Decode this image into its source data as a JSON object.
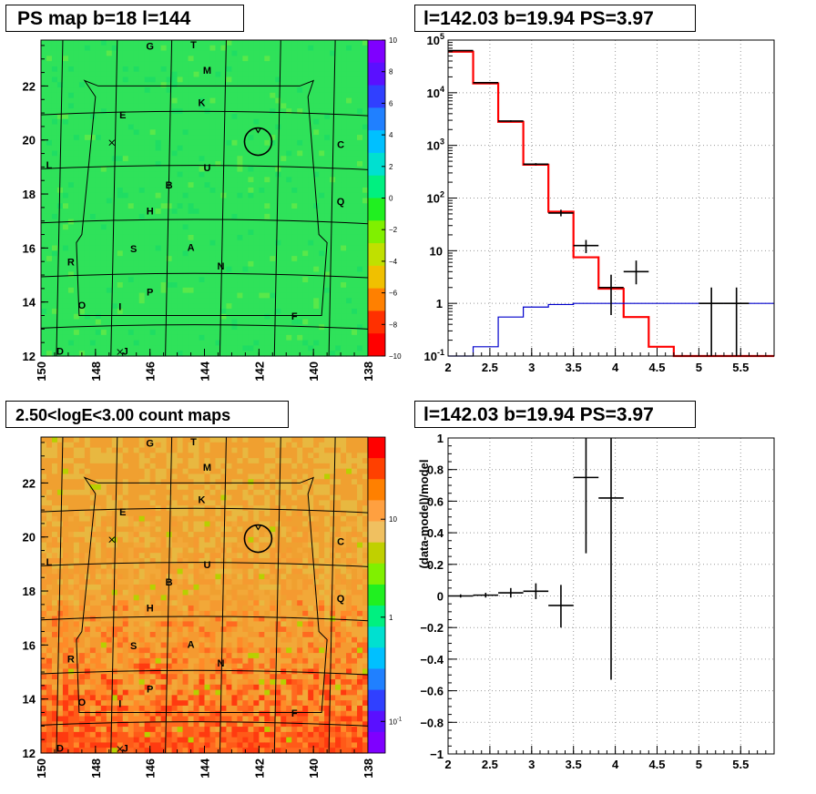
{
  "panels": {
    "tl_title": "PS map b=18 l=144",
    "tr_title": "l=142.03 b=19.94 PS=3.97",
    "bl_title": "2.50<logE<3.00 count maps",
    "br_title": "l=142.03 b=19.94 PS=3.97"
  },
  "colors": {
    "ps_map_bg": "#2be05a",
    "count_map_bg": "#f0a030",
    "data": "#000000",
    "model": "#ff0000",
    "background_model": "#0000cc"
  },
  "chart_data": [
    {
      "type": "heatmap",
      "name": "ps-map",
      "title": "PS map b=18 l=144",
      "xlim": [
        150,
        138
      ],
      "ylim": [
        12,
        23.7
      ],
      "x_ticks": [
        "150",
        "148",
        "146",
        "144",
        "142",
        "140",
        "138"
      ],
      "y_ticks": [
        "12",
        "14",
        "16",
        "18",
        "20",
        "22"
      ],
      "colorbar": {
        "scale": "linear",
        "range": [
          -10,
          10
        ],
        "ticks": [
          "10",
          "8",
          "6",
          "4",
          "2",
          "0",
          "−2",
          "−4",
          "−6",
          "−8",
          "−10"
        ],
        "colors": [
          "#7f00ff",
          "#5a10ff",
          "#3040ff",
          "#2080ff",
          "#00c0ff",
          "#00e0d0",
          "#00f080",
          "#20f020",
          "#80f000",
          "#c0e000",
          "#f0c000",
          "#ff8000",
          "#ff3000",
          "#ff0000"
        ]
      },
      "labels": [
        {
          "t": "G",
          "l": 146.0,
          "b": 23.35
        },
        {
          "t": "T",
          "l": 144.4,
          "b": 23.4
        },
        {
          "t": "M",
          "l": 143.9,
          "b": 22.45
        },
        {
          "t": "K",
          "l": 144.1,
          "b": 21.25
        },
        {
          "t": "E",
          "l": 147.0,
          "b": 20.8
        },
        {
          "t": "C",
          "l": 139.0,
          "b": 19.7
        },
        {
          "t": "L",
          "l": 149.7,
          "b": 18.95
        },
        {
          "t": "U",
          "l": 143.9,
          "b": 18.85
        },
        {
          "t": "B",
          "l": 145.3,
          "b": 18.2
        },
        {
          "t": "Q",
          "l": 139.0,
          "b": 17.6
        },
        {
          "t": "H",
          "l": 146.0,
          "b": 17.25
        },
        {
          "t": "S",
          "l": 146.6,
          "b": 15.85
        },
        {
          "t": "A",
          "l": 144.5,
          "b": 15.9
        },
        {
          "t": "R",
          "l": 148.9,
          "b": 15.35
        },
        {
          "t": "N",
          "l": 143.4,
          "b": 15.2
        },
        {
          "t": "P",
          "l": 146.0,
          "b": 14.25
        },
        {
          "t": "O",
          "l": 148.5,
          "b": 13.75
        },
        {
          "t": "I",
          "l": 147.1,
          "b": 13.7
        },
        {
          "t": "F",
          "l": 140.7,
          "b": 13.35
        },
        {
          "t": "D",
          "l": 149.3,
          "b": 12.05
        },
        {
          "t": "J",
          "l": 146.9,
          "b": 12.05
        }
      ],
      "marker_circle": {
        "l": 142.03,
        "b": 19.94
      }
    },
    {
      "type": "line",
      "name": "spectrum",
      "title": "l=142.03 b=19.94 PS=3.97",
      "xlim": [
        2,
        5.9
      ],
      "ylim": [
        0.1,
        100000
      ],
      "y_scale": "log",
      "x_ticks": [
        "2",
        "2.5",
        "3",
        "3.5",
        "4",
        "4.5",
        "5",
        "5.5"
      ],
      "y_ticks": [
        "10^-1",
        "1",
        "10",
        "10^2",
        "10^3",
        "10^4",
        "10^5"
      ],
      "grid": true,
      "edges": [
        2.0,
        2.3,
        2.6,
        2.9,
        3.2,
        3.5,
        3.8,
        4.1,
        4.4,
        4.7,
        5.0,
        5.3,
        5.6,
        5.9
      ],
      "series": [
        {
          "style": "histogram",
          "color": "#ff0000",
          "values": [
            60000,
            15000,
            2800,
            430,
            55,
            7.5,
            1.9,
            0.55,
            0.15,
            0.1,
            0.1,
            0.1,
            0.1
          ]
        },
        {
          "style": "histogram",
          "color": "#0000cc",
          "values": [
            0.1,
            0.15,
            0.55,
            0.85,
            0.95,
            1.0,
            1.0,
            1.0,
            1.0,
            1.0,
            1.0,
            1.0,
            1.0
          ]
        },
        {
          "style": "points",
          "color": "#000000",
          "points": [
            {
              "x": 2.15,
              "y": 63000,
              "ylo": 62000,
              "yhi": 64000
            },
            {
              "x": 2.45,
              "y": 15500,
              "ylo": 15200,
              "yhi": 15800
            },
            {
              "x": 2.75,
              "y": 2900,
              "ylo": 2800,
              "yhi": 3000
            },
            {
              "x": 3.05,
              "y": 440,
              "ylo": 420,
              "yhi": 460
            },
            {
              "x": 3.35,
              "y": 52,
              "ylo": 45,
              "yhi": 60
            },
            {
              "x": 3.65,
              "y": 12.5,
              "ylo": 9,
              "yhi": 16
            },
            {
              "x": 3.95,
              "y": 2.0,
              "ylo": 0.6,
              "yhi": 3.5
            },
            {
              "x": 4.25,
              "y": 4.0,
              "ylo": 2.3,
              "yhi": 6.5
            },
            {
              "x": 5.15,
              "y": 1.0,
              "ylo": 0.1,
              "yhi": 2.0
            },
            {
              "x": 5.45,
              "y": 1.0,
              "ylo": 0.1,
              "yhi": 2.0
            }
          ]
        }
      ]
    },
    {
      "type": "heatmap",
      "name": "count-map",
      "title": "2.50<logE<3.00 count maps",
      "xlim": [
        150,
        138
      ],
      "ylim": [
        12,
        23.7
      ],
      "x_ticks": [
        "150",
        "148",
        "146",
        "144",
        "142",
        "140",
        "138"
      ],
      "y_ticks": [
        "12",
        "14",
        "16",
        "18",
        "20",
        "22"
      ],
      "colorbar": {
        "scale": "log",
        "ticks": [
          "10",
          "1",
          "10^-1"
        ],
        "colors": [
          "#ff0000",
          "#ff4000",
          "#ff8000",
          "#ffa040",
          "#f0c060",
          "#c0d000",
          "#80f000",
          "#20f020",
          "#00f080",
          "#00e0d0",
          "#00c0ff",
          "#2080ff",
          "#3040ff",
          "#5a10ff",
          "#7f00ff"
        ]
      }
    },
    {
      "type": "scatter",
      "name": "residuals",
      "title": "l=142.03 b=19.94 PS=3.97",
      "ylabel": "(data-model)/model",
      "xlim": [
        2,
        5.9
      ],
      "ylim": [
        -1,
        1
      ],
      "x_ticks": [
        "2",
        "2.5",
        "3",
        "3.5",
        "4",
        "4.5",
        "5",
        "5.5"
      ],
      "y_ticks": [
        "1",
        "0.8",
        "0.6",
        "0.4",
        "0.2",
        "0",
        "−0.2",
        "−0.4",
        "−0.6",
        "−0.8",
        "−1"
      ],
      "grid": true,
      "points": [
        {
          "x": 2.15,
          "y": 0.0,
          "ylo": -0.01,
          "yhi": 0.01
        },
        {
          "x": 2.45,
          "y": 0.005,
          "ylo": -0.01,
          "yhi": 0.02
        },
        {
          "x": 2.75,
          "y": 0.02,
          "ylo": -0.01,
          "yhi": 0.05
        },
        {
          "x": 3.05,
          "y": 0.03,
          "ylo": -0.02,
          "yhi": 0.08
        },
        {
          "x": 3.35,
          "y": -0.06,
          "ylo": -0.2,
          "yhi": 0.07
        },
        {
          "x": 3.65,
          "y": 0.75,
          "ylo": 0.27,
          "yhi": 1.0
        },
        {
          "x": 3.95,
          "y": 0.62,
          "ylo": -0.53,
          "yhi": 1.0
        }
      ]
    }
  ]
}
